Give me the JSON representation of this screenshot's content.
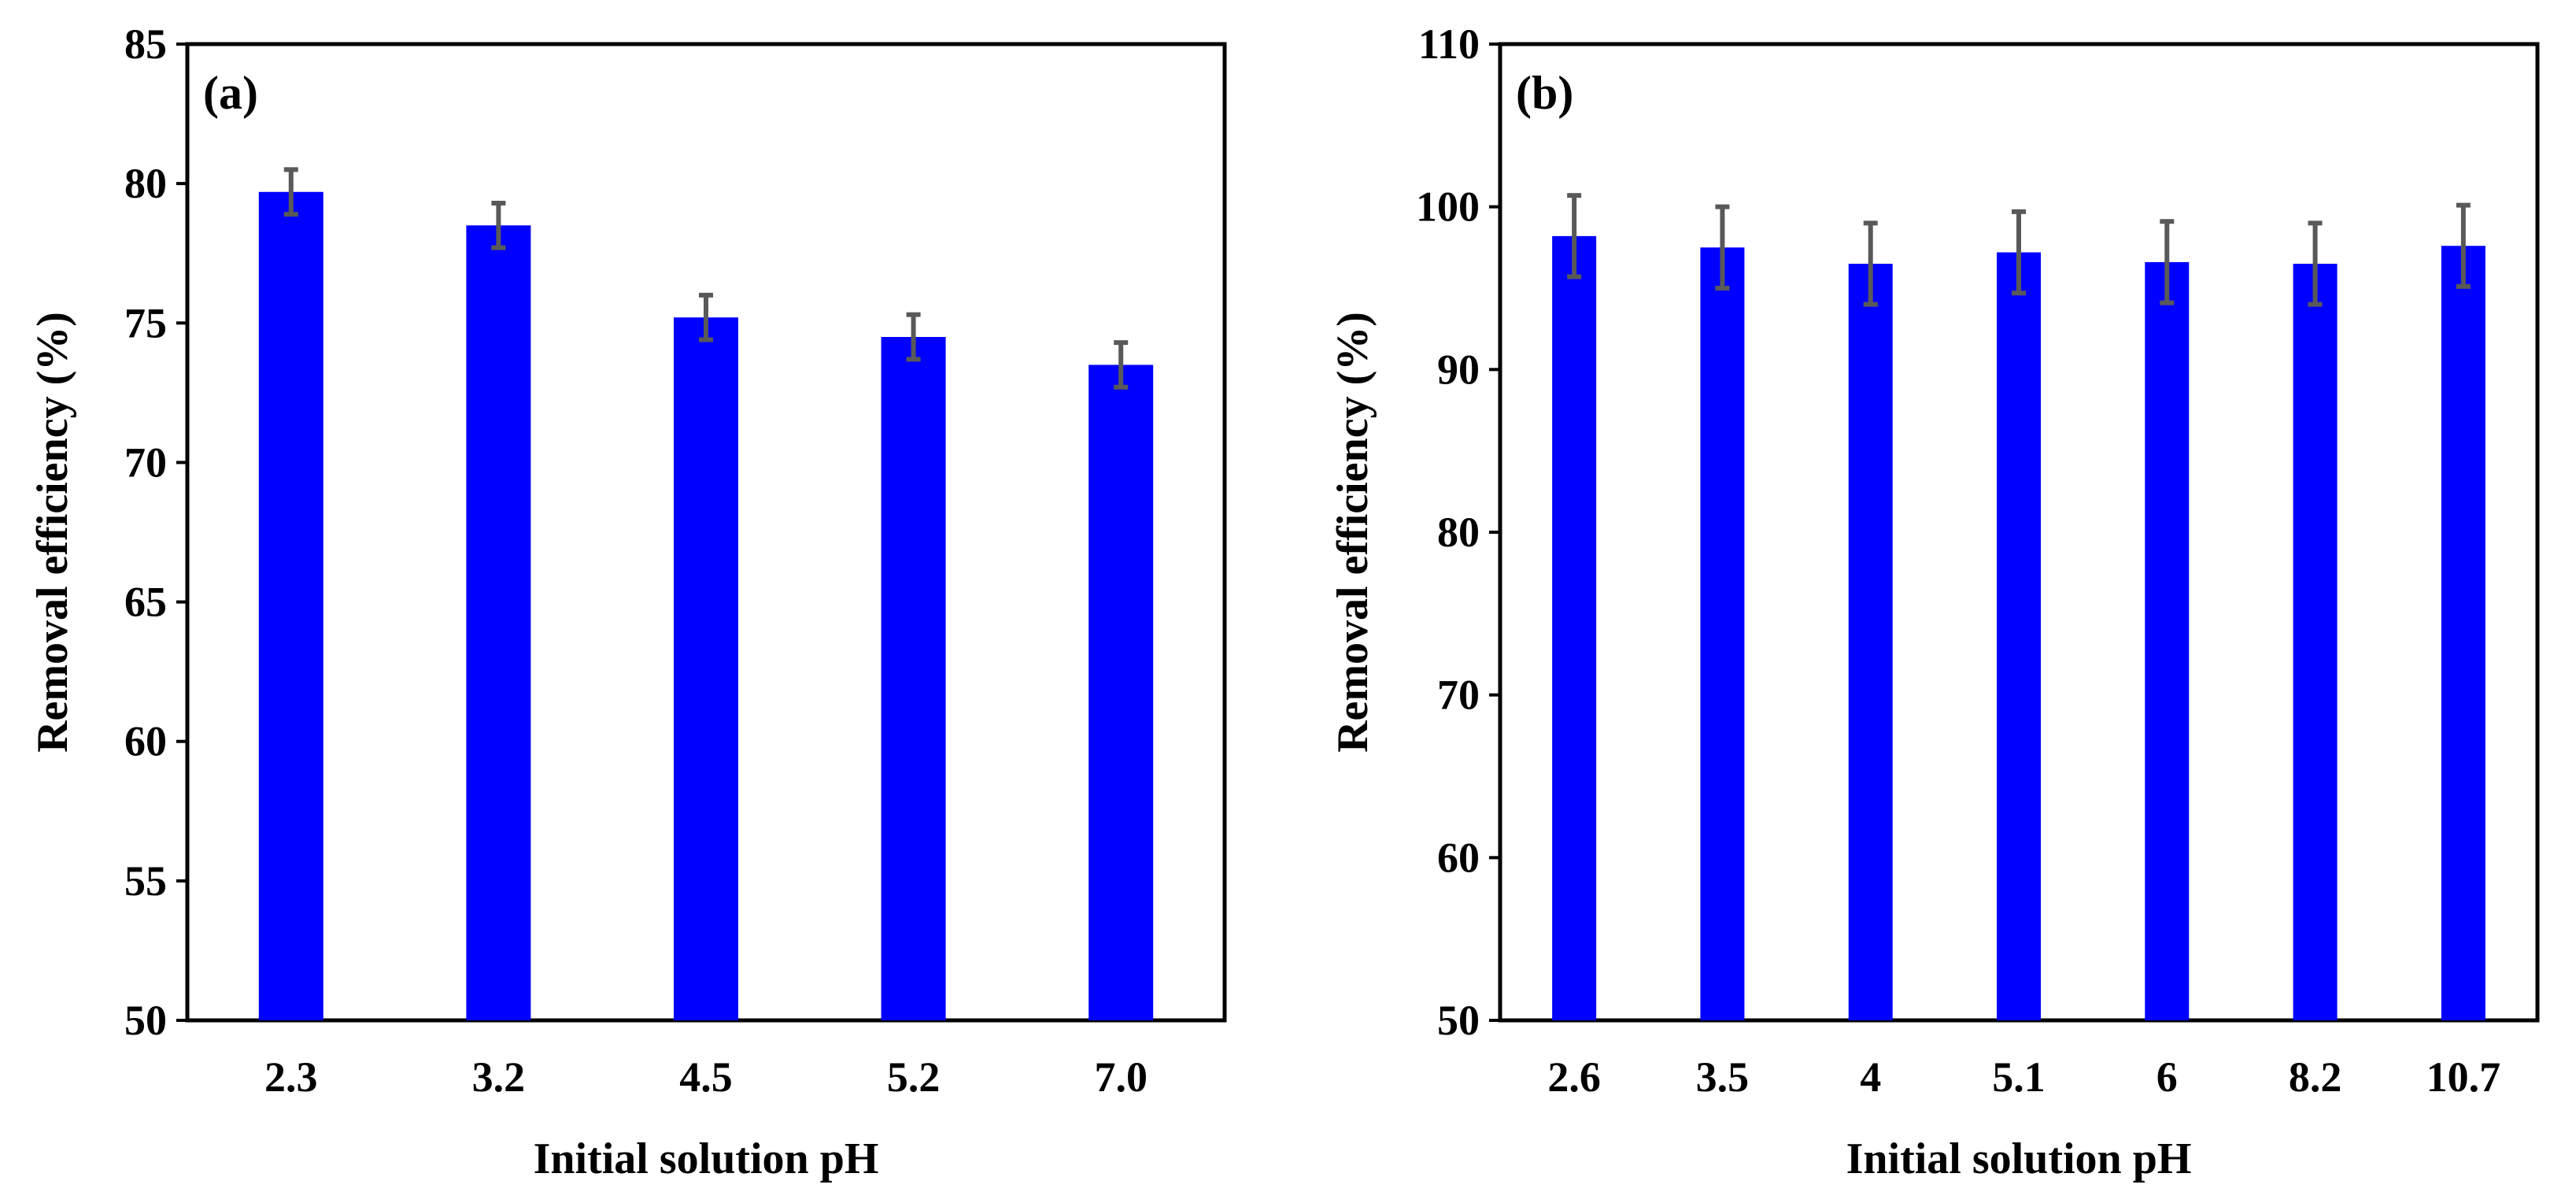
{
  "chart_data": [
    {
      "type": "bar",
      "panel_label": "(a)",
      "xlabel": "Initial solution pH",
      "ylabel": "Removal efficiency (%)",
      "categories": [
        "2.3",
        "3.2",
        "4.5",
        "5.2",
        "7.0"
      ],
      "values": [
        79.7,
        78.5,
        75.2,
        74.5,
        73.5
      ],
      "errors": [
        0.8,
        0.8,
        0.8,
        0.8,
        0.8
      ],
      "ylim": [
        50,
        85
      ],
      "yticks": [
        "50",
        "55",
        "60",
        "65",
        "70",
        "75",
        "80",
        "85"
      ],
      "ytick_values": [
        50,
        55,
        60,
        65,
        70,
        75,
        80,
        85
      ],
      "bar_color": "#0000FF",
      "error_color": "#595959",
      "grid": false
    },
    {
      "type": "bar",
      "panel_label": "(b)",
      "xlabel": "Initial solution pH",
      "ylabel": "Removal efficiency (%)",
      "categories": [
        "2.6",
        "3.5",
        "4",
        "5.1",
        "6",
        "8.2",
        "10.7"
      ],
      "values": [
        98.2,
        97.5,
        96.5,
        97.2,
        96.6,
        96.5,
        97.6
      ],
      "errors": [
        2.5,
        2.5,
        2.5,
        2.5,
        2.5,
        2.5,
        2.5
      ],
      "ylim": [
        50,
        110
      ],
      "yticks": [
        "50",
        "60",
        "70",
        "80",
        "90",
        "100",
        "110"
      ],
      "ytick_values": [
        50,
        60,
        70,
        80,
        90,
        100,
        110
      ],
      "bar_color": "#0000FF",
      "error_color": "#595959",
      "grid": false
    }
  ]
}
